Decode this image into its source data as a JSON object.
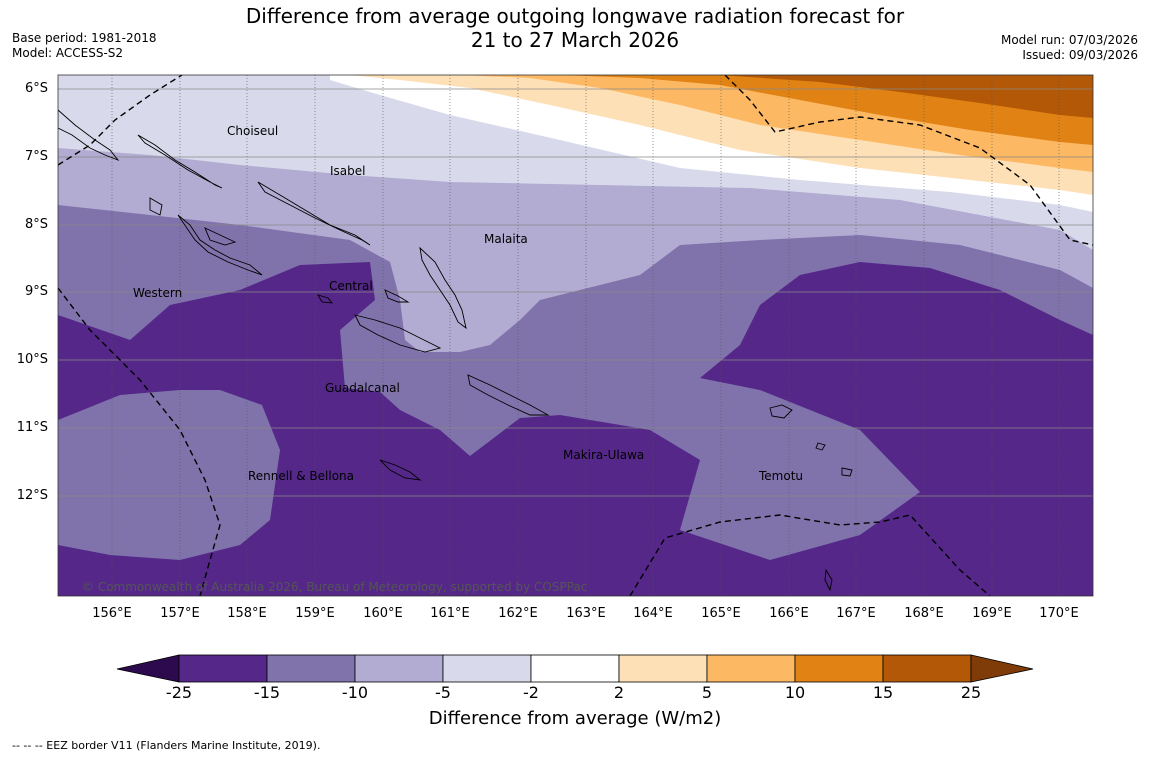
{
  "title": {
    "line1": "Difference from average outgoing longwave radiation forecast for",
    "line2": "21 to 27 March 2026"
  },
  "meta": {
    "base_period": "Base period: 1981-2018",
    "model": "Model: ACCESS-S2",
    "model_run": "Model run: 07/03/2026",
    "issued": "Issued: 09/03/2026"
  },
  "map": {
    "lat_labels": [
      "6°S",
      "7°S",
      "8°S",
      "9°S",
      "10°S",
      "11°S",
      "12°S"
    ],
    "lon_labels": [
      "156°E",
      "157°E",
      "158°E",
      "159°E",
      "160°E",
      "161°E",
      "162°E",
      "163°E",
      "164°E",
      "165°E",
      "166°E",
      "167°E",
      "168°E",
      "169°E",
      "170°E"
    ],
    "regions": {
      "choiseul": "Choiseul",
      "isabel": "Isabel",
      "malaita": "Malaita",
      "western": "Western",
      "central": "Central",
      "guadalcanal": "Guadalcanal",
      "makira": "Makira-Ulawa",
      "rennell": "Rennell & Bellona",
      "temotu": "Temotu"
    },
    "copyright": "© Commonwealth of Australia 2026, Bureau of Meteorology, supported by COSPPac"
  },
  "colorbar": {
    "ticks": [
      "-25",
      "-15",
      "-10",
      "-5",
      "-2",
      "2",
      "5",
      "10",
      "15",
      "25"
    ],
    "colors": {
      "below": "#2d0a4e",
      "c1": "#542788",
      "c2": "#8073ac",
      "c3": "#b2abd2",
      "c4": "#d8daeb",
      "c5": "#ffffff",
      "c6": "#fee0b6",
      "c7": "#fdb863",
      "c8": "#e08214",
      "c9": "#b35806",
      "above": "#7f3b08"
    },
    "label": "Difference from average (W/m2)"
  },
  "footer": "--  --  -- EEZ border V11 (Flanders Marine Institute, 2019)."
}
